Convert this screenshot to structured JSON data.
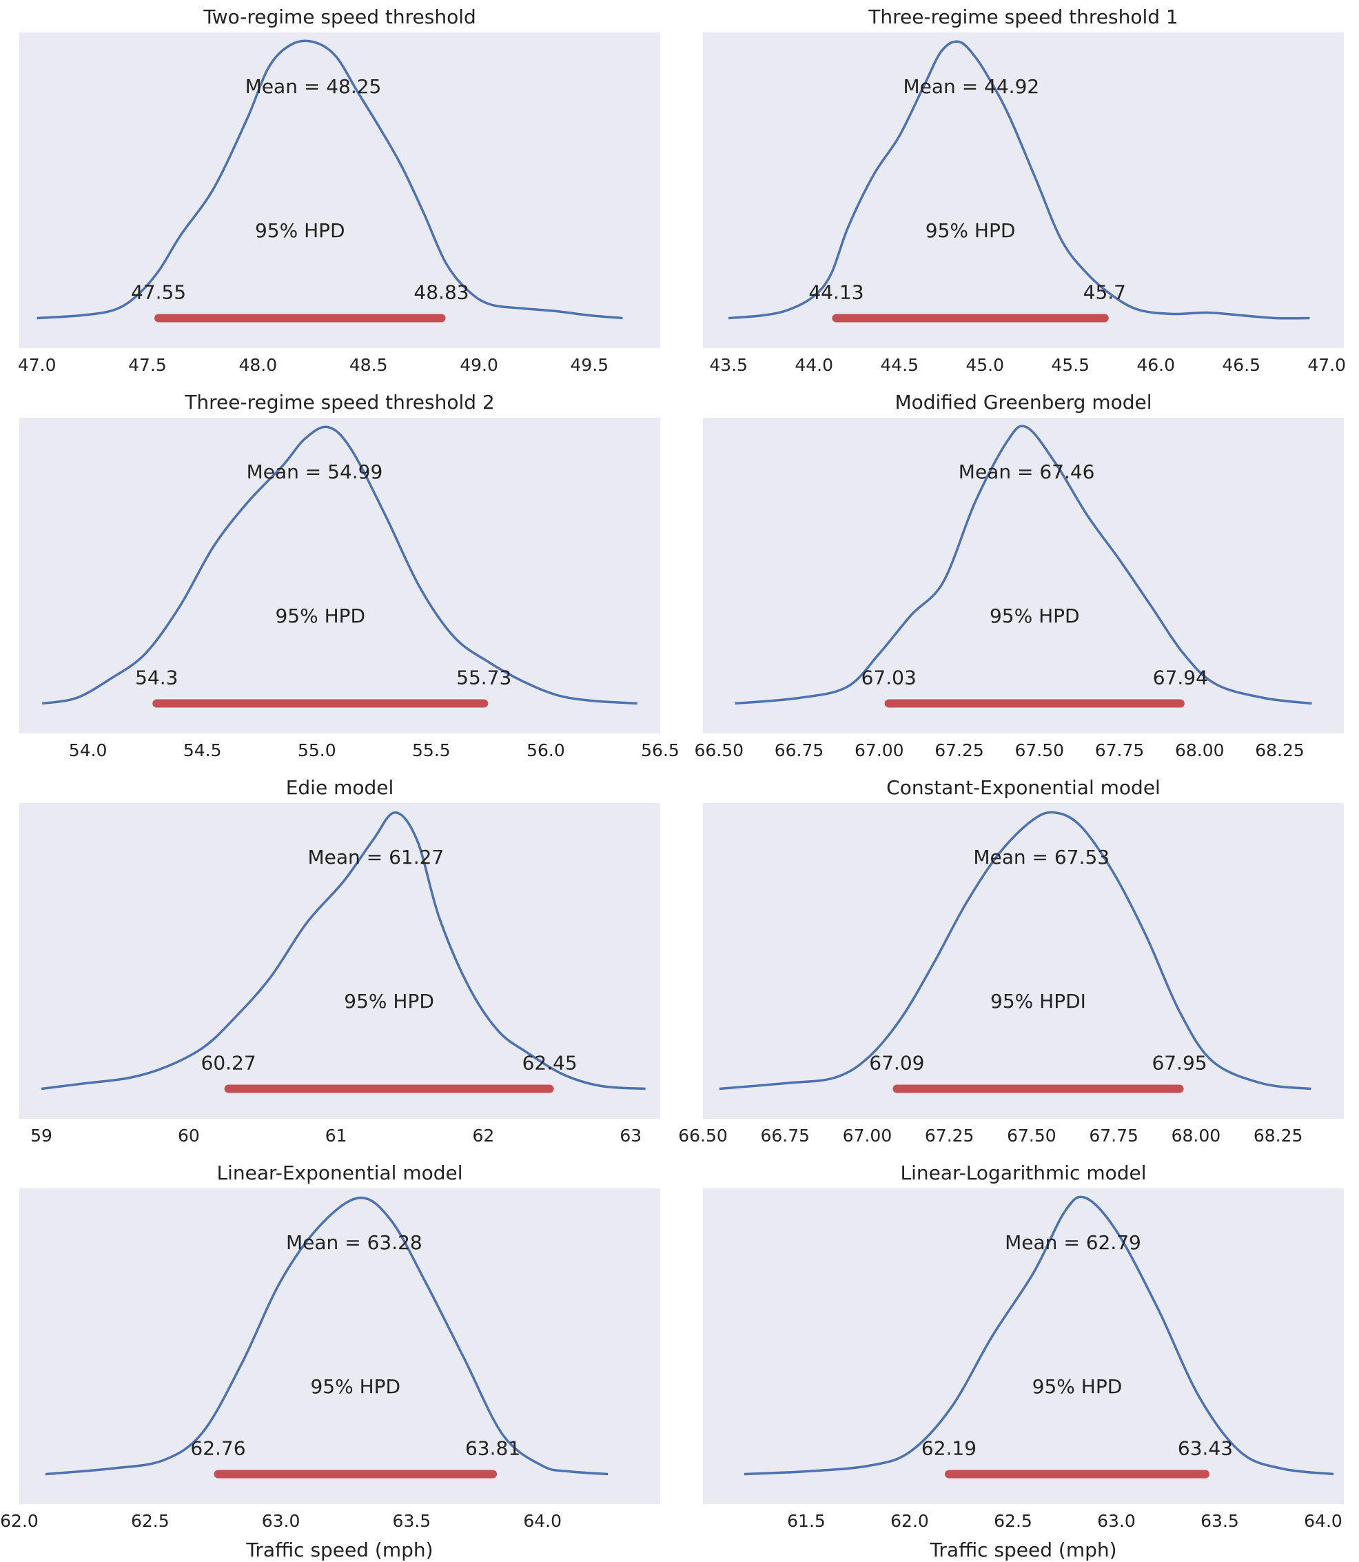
{
  "chart_data": [
    {
      "type": "area",
      "title": "Two-regime speed threshold",
      "mean": 48.25,
      "mean_label": "Mean = 48.25",
      "hpd_label": "95% HPD",
      "hpd": [
        47.55,
        48.83
      ],
      "hpd_lo_label": "47.55",
      "hpd_hi_label": "48.83",
      "xlim": [
        46.92,
        49.82
      ],
      "xticks": [
        47.0,
        47.5,
        48.0,
        48.5,
        49.0,
        49.5
      ],
      "xtick_labels": [
        "47.0",
        "47.5",
        "48.0",
        "48.5",
        "49.0",
        "49.5"
      ],
      "xlabel": "",
      "x": [
        47.0,
        47.2,
        47.35,
        47.45,
        47.55,
        47.65,
        47.8,
        47.95,
        48.05,
        48.15,
        48.25,
        48.35,
        48.45,
        48.55,
        48.65,
        48.75,
        48.85,
        48.95,
        49.05,
        49.2,
        49.35,
        49.5,
        49.65
      ],
      "density": [
        0.0,
        0.01,
        0.03,
        0.08,
        0.17,
        0.3,
        0.47,
        0.72,
        0.91,
        0.99,
        1.0,
        0.95,
        0.82,
        0.69,
        0.55,
        0.38,
        0.2,
        0.1,
        0.05,
        0.035,
        0.025,
        0.01,
        0.0
      ]
    },
    {
      "type": "area",
      "title": "Three-regime speed threshold 1",
      "mean": 44.92,
      "mean_label": "Mean = 44.92",
      "hpd_label": "95% HPD",
      "hpd": [
        44.13,
        45.7
      ],
      "hpd_lo_label": "44.13",
      "hpd_hi_label": "45.7",
      "xlim": [
        43.35,
        47.1
      ],
      "xticks": [
        43.5,
        44.0,
        44.5,
        45.0,
        45.5,
        46.0,
        46.5,
        47.0
      ],
      "xtick_labels": [
        "43.5",
        "44.0",
        "44.5",
        "45.0",
        "45.5",
        "46.0",
        "46.5",
        "47.0"
      ],
      "xlabel": "",
      "x": [
        43.5,
        43.7,
        43.85,
        44.0,
        44.1,
        44.2,
        44.35,
        44.5,
        44.65,
        44.75,
        44.85,
        44.95,
        45.05,
        45.15,
        45.3,
        45.45,
        45.6,
        45.75,
        45.9,
        46.1,
        46.3,
        46.5,
        46.7,
        46.9
      ],
      "density": [
        0.0,
        0.01,
        0.03,
        0.08,
        0.16,
        0.33,
        0.52,
        0.66,
        0.85,
        0.97,
        1.0,
        0.94,
        0.84,
        0.72,
        0.5,
        0.28,
        0.16,
        0.08,
        0.03,
        0.015,
        0.02,
        0.01,
        0.0,
        0.0
      ]
    },
    {
      "type": "area",
      "title": "Three-regime speed threshold 2",
      "mean": 54.99,
      "mean_label": "Mean = 54.99",
      "hpd_label": "95% HPD",
      "hpd": [
        54.3,
        55.73
      ],
      "hpd_lo_label": "54.3",
      "hpd_hi_label": "55.73",
      "xlim": [
        53.7,
        56.5
      ],
      "xticks": [
        54.0,
        54.5,
        55.0,
        55.5,
        56.0,
        56.5
      ],
      "xtick_labels": [
        "54.0",
        "54.5",
        "55.0",
        "55.5",
        "56.0",
        "56.5"
      ],
      "xlabel": "",
      "x": [
        53.8,
        53.95,
        54.1,
        54.25,
        54.4,
        54.55,
        54.7,
        54.85,
        54.95,
        55.05,
        55.15,
        55.3,
        55.45,
        55.6,
        55.75,
        55.9,
        56.05,
        56.2,
        56.4
      ],
      "density": [
        0.0,
        0.02,
        0.09,
        0.18,
        0.35,
        0.57,
        0.73,
        0.86,
        0.96,
        1.0,
        0.92,
        0.68,
        0.42,
        0.24,
        0.15,
        0.08,
        0.03,
        0.01,
        0.0
      ]
    },
    {
      "type": "area",
      "title": "Modified Greenberg model",
      "mean": 67.46,
      "mean_label": "Mean = 67.46",
      "hpd_label": "95% HPD",
      "hpd": [
        67.03,
        67.94
      ],
      "hpd_lo_label": "67.03",
      "hpd_hi_label": "67.94",
      "xlim": [
        66.45,
        68.45
      ],
      "xticks": [
        66.5,
        66.75,
        67.0,
        67.25,
        67.5,
        67.75,
        68.0,
        68.25
      ],
      "xtick_labels": [
        "66.50",
        "66.75",
        "67.00",
        "67.25",
        "67.50",
        "67.75",
        "68.00",
        "68.25"
      ],
      "xlabel": "",
      "x": [
        66.55,
        66.75,
        66.9,
        67.0,
        67.1,
        67.2,
        67.3,
        67.4,
        67.46,
        67.55,
        67.65,
        67.75,
        67.85,
        67.95,
        68.05,
        68.2,
        68.35
      ],
      "density": [
        0.0,
        0.02,
        0.06,
        0.18,
        0.32,
        0.44,
        0.73,
        0.95,
        1.0,
        0.87,
        0.68,
        0.52,
        0.35,
        0.18,
        0.07,
        0.02,
        0.0
      ]
    },
    {
      "type": "area",
      "title": "Edie model",
      "mean": 61.27,
      "mean_label": "Mean = 61.27",
      "hpd_label": "95% HPD",
      "hpd": [
        60.27,
        62.45
      ],
      "hpd_lo_label": "60.27",
      "hpd_hi_label": "62.45",
      "xlim": [
        58.85,
        63.2
      ],
      "xticks": [
        59,
        60,
        61,
        62,
        63
      ],
      "xtick_labels": [
        "59",
        "60",
        "61",
        "62",
        "63"
      ],
      "xlabel": "",
      "x": [
        59.0,
        59.3,
        59.6,
        59.85,
        60.1,
        60.3,
        60.55,
        60.8,
        61.05,
        61.25,
        61.4,
        61.55,
        61.7,
        61.9,
        62.1,
        62.3,
        62.55,
        62.8,
        63.1
      ],
      "density": [
        0.0,
        0.02,
        0.04,
        0.08,
        0.15,
        0.25,
        0.4,
        0.6,
        0.75,
        0.9,
        1.0,
        0.9,
        0.62,
        0.37,
        0.21,
        0.13,
        0.05,
        0.01,
        0.0
      ]
    },
    {
      "type": "area",
      "title": "Constant-Exponential model",
      "mean": 67.53,
      "mean_label": "Mean = 67.53",
      "hpd_label": "95% HPDI",
      "hpd": [
        67.09,
        67.95
      ],
      "hpd_lo_label": "67.09",
      "hpd_hi_label": "67.95",
      "xlim": [
        66.5,
        68.45
      ],
      "xticks": [
        66.5,
        66.75,
        67.0,
        67.25,
        67.5,
        67.75,
        68.0,
        68.25
      ],
      "xtick_labels": [
        "66.50",
        "66.75",
        "67.00",
        "67.25",
        "67.50",
        "67.75",
        "68.00",
        "68.25"
      ],
      "xlabel": "",
      "x": [
        66.55,
        66.75,
        66.9,
        67.0,
        67.1,
        67.2,
        67.3,
        67.4,
        67.5,
        67.57,
        67.65,
        67.75,
        67.85,
        67.95,
        68.05,
        68.2,
        68.35
      ],
      "density": [
        0.0,
        0.02,
        0.04,
        0.11,
        0.25,
        0.45,
        0.67,
        0.85,
        0.97,
        1.0,
        0.95,
        0.78,
        0.55,
        0.28,
        0.1,
        0.02,
        0.0
      ]
    },
    {
      "type": "area",
      "title": "Linear-Exponential model",
      "mean": 63.28,
      "mean_label": "Mean = 63.28",
      "hpd_label": "95% HPD",
      "hpd": [
        62.76,
        63.81
      ],
      "hpd_lo_label": "62.76",
      "hpd_hi_label": "63.81",
      "xlim": [
        62.0,
        64.45
      ],
      "xticks": [
        62.0,
        62.5,
        63.0,
        63.5,
        64.0
      ],
      "xtick_labels": [
        "62.0",
        "62.5",
        "63.0",
        "63.5",
        "64.0"
      ],
      "xlabel": "Traffic speed (mph)",
      "x": [
        62.1,
        62.35,
        62.55,
        62.7,
        62.85,
        63.0,
        63.15,
        63.3,
        63.42,
        63.55,
        63.7,
        63.85,
        64.0,
        64.1,
        64.25
      ],
      "density": [
        0.0,
        0.02,
        0.05,
        0.15,
        0.4,
        0.7,
        0.9,
        1.0,
        0.92,
        0.7,
        0.42,
        0.14,
        0.03,
        0.01,
        0.0
      ]
    },
    {
      "type": "area",
      "title": "Linear-Logarithmic model",
      "mean": 62.79,
      "mean_label": "Mean = 62.79",
      "hpd_label": "95% HPD",
      "hpd": [
        62.19,
        63.43
      ],
      "hpd_lo_label": "62.19",
      "hpd_hi_label": "63.43",
      "xlim": [
        61.0,
        64.1
      ],
      "xticks": [
        61.5,
        62.0,
        62.5,
        63.0,
        63.5,
        64.0
      ],
      "xtick_labels": [
        "61.5",
        "62.0",
        "62.5",
        "63.0",
        "63.5",
        "64.0"
      ],
      "xlabel": "Traffic speed (mph)",
      "x": [
        61.2,
        61.5,
        61.8,
        62.0,
        62.2,
        62.4,
        62.6,
        62.75,
        62.85,
        63.0,
        63.2,
        63.4,
        63.6,
        63.8,
        64.05
      ],
      "density": [
        0.0,
        0.01,
        0.03,
        0.08,
        0.24,
        0.5,
        0.73,
        0.95,
        1.0,
        0.88,
        0.6,
        0.28,
        0.08,
        0.02,
        0.0
      ]
    }
  ]
}
